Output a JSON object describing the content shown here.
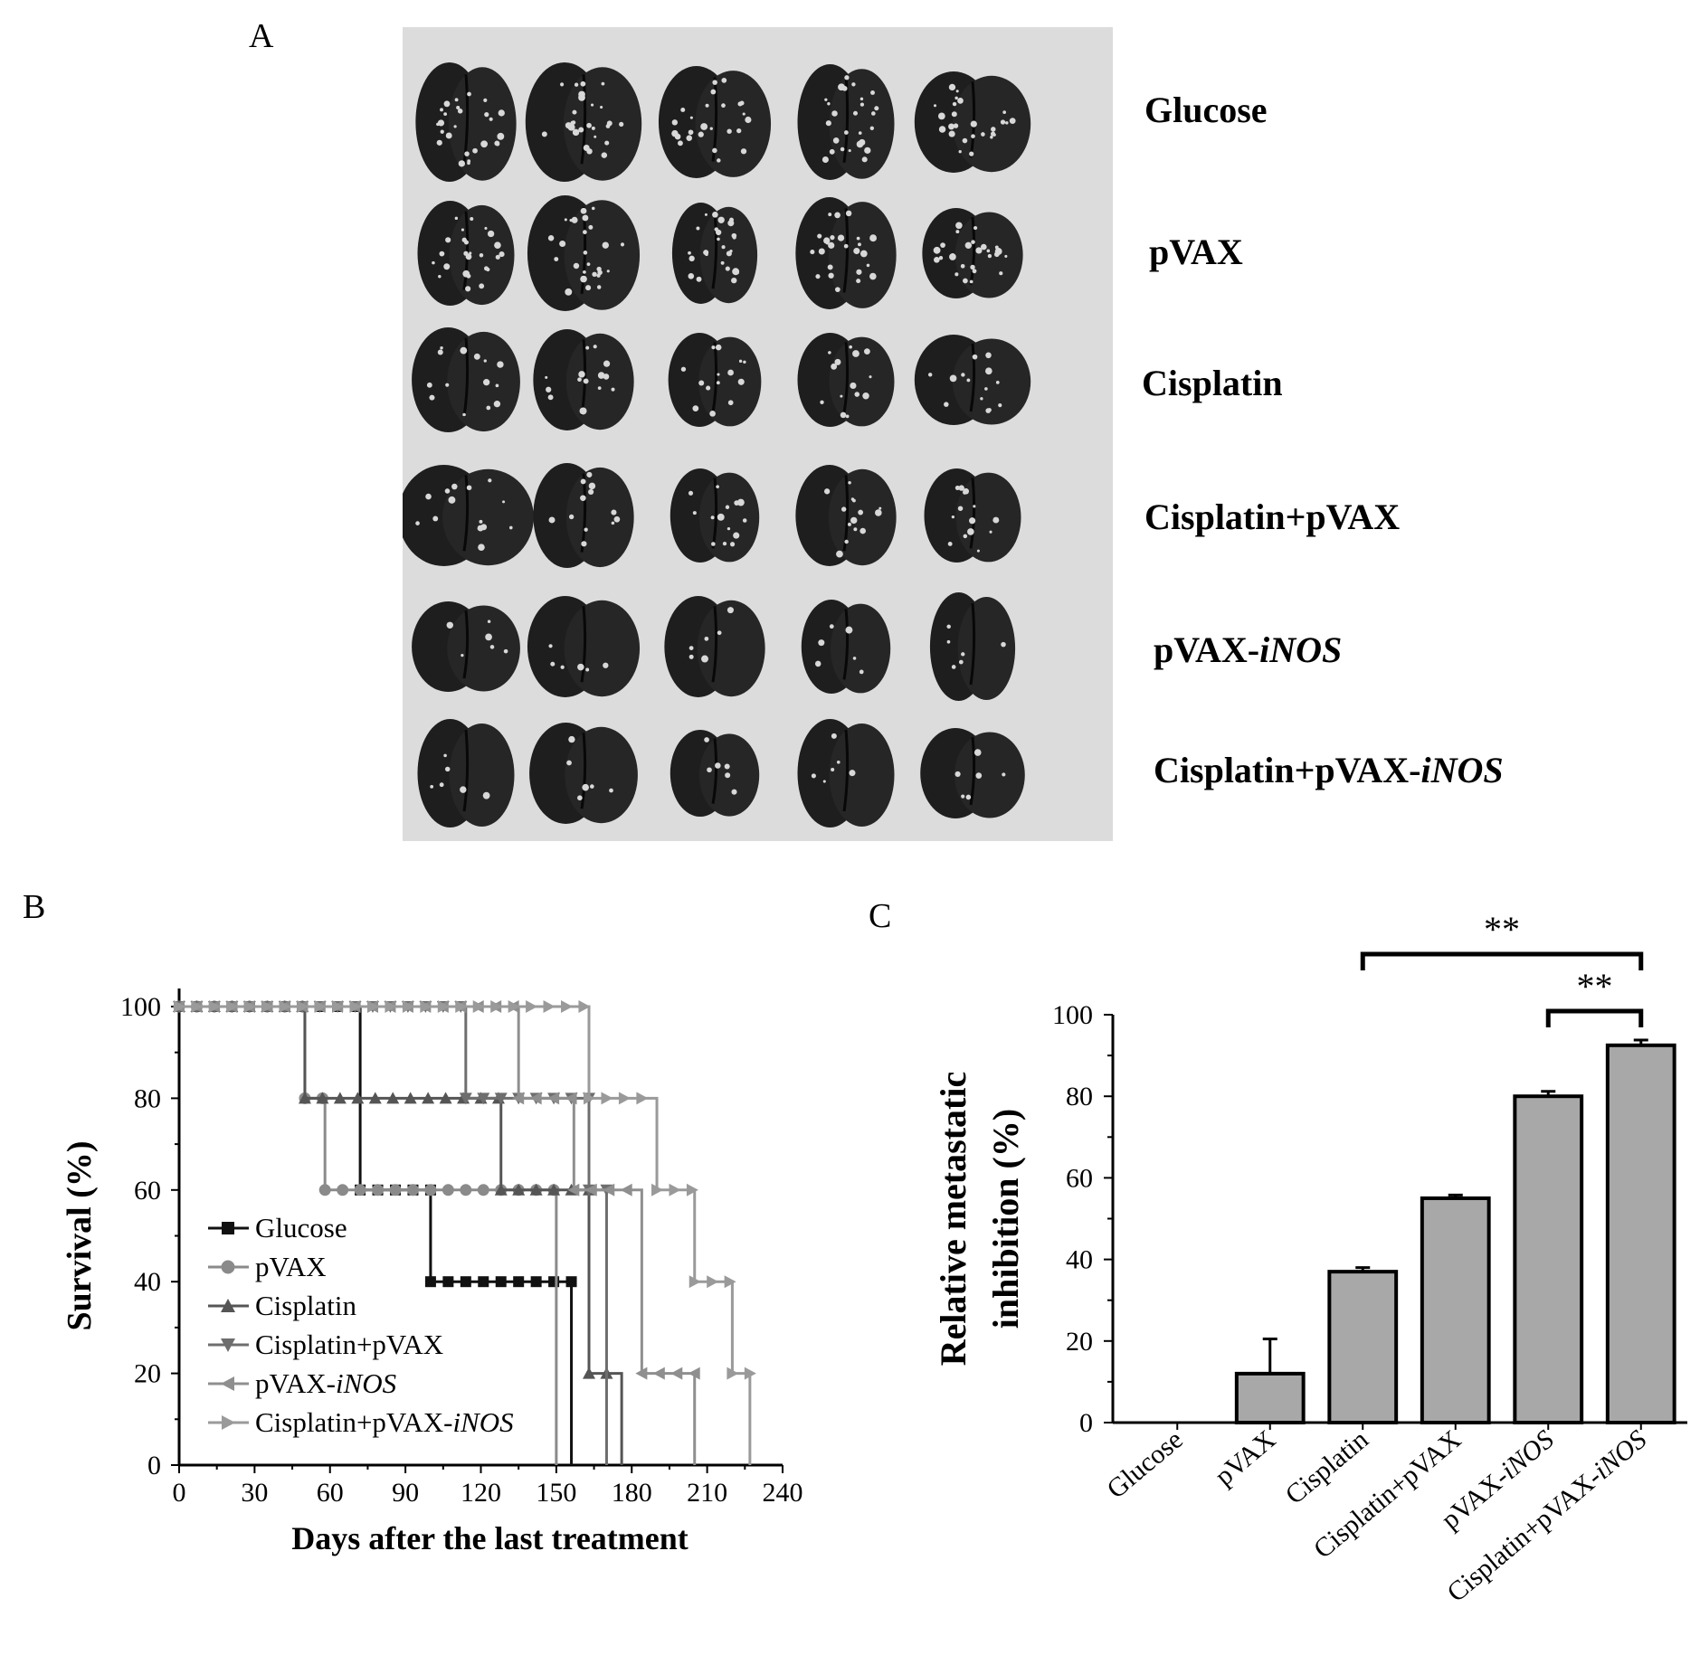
{
  "panel_a": {
    "letter": "A",
    "rows": [
      {
        "prefix": "Glucose",
        "italic": ""
      },
      {
        "prefix": "pVAX",
        "italic": ""
      },
      {
        "prefix": "Cisplatin",
        "italic": ""
      },
      {
        "prefix": "Cisplatin+pVAX",
        "italic": ""
      },
      {
        "prefix": "pVAX-",
        "italic": "iNOS"
      },
      {
        "prefix": "Cisplatin+pVAX-",
        "italic": "iNOS"
      }
    ]
  },
  "chart_data": [
    {
      "panel": "B",
      "type": "line",
      "xlabel": "Days after the last treatment",
      "ylabel": "Survival (%)",
      "xlim": [
        0,
        240
      ],
      "ylim": [
        0,
        100
      ],
      "xticks": [
        0,
        30,
        60,
        90,
        120,
        150,
        180,
        210,
        240
      ],
      "yticks": [
        0,
        20,
        40,
        60,
        80,
        100
      ],
      "legend_position": "inside-lower-left",
      "series": [
        {
          "name": "Glucose",
          "name_prefix": "Glucose",
          "name_italic": "",
          "color": "#111111",
          "marker": "square",
          "x": [
            0,
            72,
            72,
            100,
            100,
            156,
            156
          ],
          "y": [
            100,
            100,
            60,
            60,
            40,
            40,
            0
          ]
        },
        {
          "name": "pVAX",
          "name_prefix": "pVAX",
          "name_italic": "",
          "color": "#8a8a8a",
          "marker": "circle",
          "x": [
            0,
            50,
            50,
            58,
            58,
            150,
            150
          ],
          "y": [
            100,
            100,
            80,
            80,
            60,
            60,
            0
          ]
        },
        {
          "name": "Cisplatin",
          "name_prefix": "Cisplatin",
          "name_italic": "",
          "color": "#555555",
          "marker": "triangle-up",
          "x": [
            0,
            50,
            50,
            128,
            128,
            163,
            163,
            176,
            176
          ],
          "y": [
            100,
            100,
            80,
            80,
            60,
            60,
            20,
            20,
            0
          ]
        },
        {
          "name": "Cisplatin+pVAX",
          "name_prefix": "Cisplatin+pVAX",
          "name_italic": "",
          "color": "#6e6e6e",
          "marker": "triangle-down",
          "x": [
            0,
            114,
            114,
            163,
            163,
            170,
            170
          ],
          "y": [
            100,
            100,
            80,
            80,
            60,
            60,
            0
          ]
        },
        {
          "name": "pVAX-iNOS",
          "name_prefix": "pVAX-",
          "name_italic": "iNOS",
          "color": "#8f8f8f",
          "marker": "triangle-left",
          "x": [
            0,
            135,
            135,
            157,
            157,
            184,
            184,
            205,
            205
          ],
          "y": [
            100,
            100,
            80,
            80,
            60,
            60,
            20,
            20,
            0
          ]
        },
        {
          "name": "Cisplatin+pVAX-iNOS",
          "name_prefix": "Cisplatin+pVAX-",
          "name_italic": "iNOS",
          "color": "#9a9a9a",
          "marker": "triangle-right",
          "x": [
            0,
            163,
            163,
            190,
            190,
            205,
            205,
            220,
            220,
            227,
            227
          ],
          "y": [
            100,
            100,
            80,
            80,
            60,
            60,
            40,
            40,
            20,
            20,
            0
          ]
        }
      ]
    },
    {
      "panel": "C",
      "type": "bar",
      "ylabel_line1": "Relative metastatic",
      "ylabel_line2": "inhibition (%)",
      "ylim": [
        0,
        100
      ],
      "yticks": [
        0,
        20,
        40,
        60,
        80,
        100
      ],
      "categories": [
        {
          "prefix": "Glucose",
          "italic": ""
        },
        {
          "prefix": "pVAX",
          "italic": ""
        },
        {
          "prefix": "Cisplatin",
          "italic": ""
        },
        {
          "prefix": "Cisplatin+pVAX",
          "italic": ""
        },
        {
          "prefix": "pVAX-",
          "italic": "iNOS"
        },
        {
          "prefix": "Cisplatin+pVAX-",
          "italic": "iNOS"
        }
      ],
      "values": [
        0,
        12,
        37,
        55,
        80,
        92.5
      ],
      "errors": [
        0,
        8.5,
        1,
        0.8,
        1.2,
        1.3
      ],
      "bar_color": "#a8a8a8",
      "significance": [
        {
          "from": 2,
          "to": 5,
          "label": "**"
        },
        {
          "from": 4,
          "to": 5,
          "label": "**"
        }
      ]
    }
  ]
}
